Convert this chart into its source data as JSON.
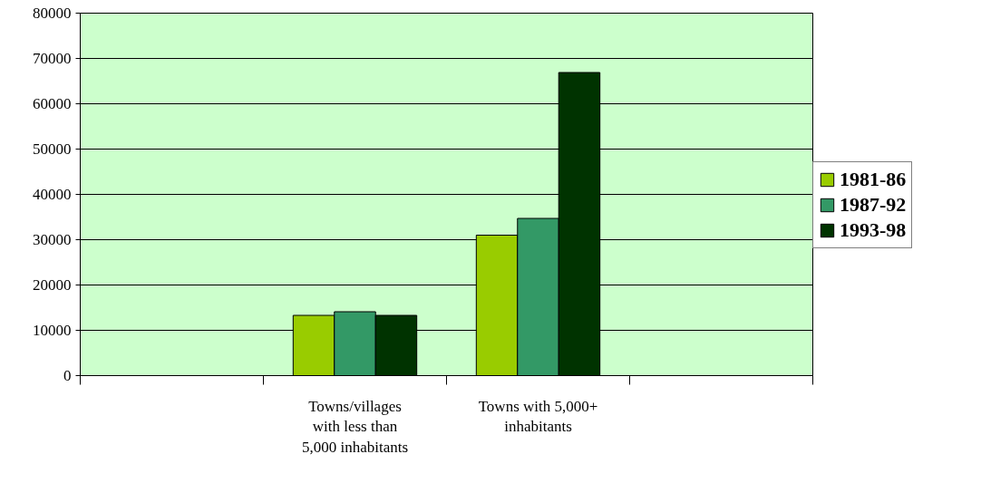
{
  "chart_data": {
    "type": "bar",
    "categories": [
      null,
      "Towns/villages with less than 5,000 inhabitants",
      "Towns with 5,000+ inhabitants",
      null
    ],
    "series": [
      {
        "name": "1981-86",
        "color": "#99cc00",
        "values": [
          null,
          13300,
          31000,
          null
        ]
      },
      {
        "name": "1987-92",
        "color": "#339966",
        "values": [
          null,
          14100,
          34700,
          null
        ]
      },
      {
        "name": "1993-98",
        "color": "#003300",
        "values": [
          null,
          13300,
          66900,
          null
        ]
      }
    ],
    "ylim": [
      0,
      80000
    ],
    "yticks": [
      0,
      10000,
      20000,
      30000,
      40000,
      50000,
      60000,
      70000,
      80000
    ],
    "grid": "y",
    "legend": "right"
  }
}
